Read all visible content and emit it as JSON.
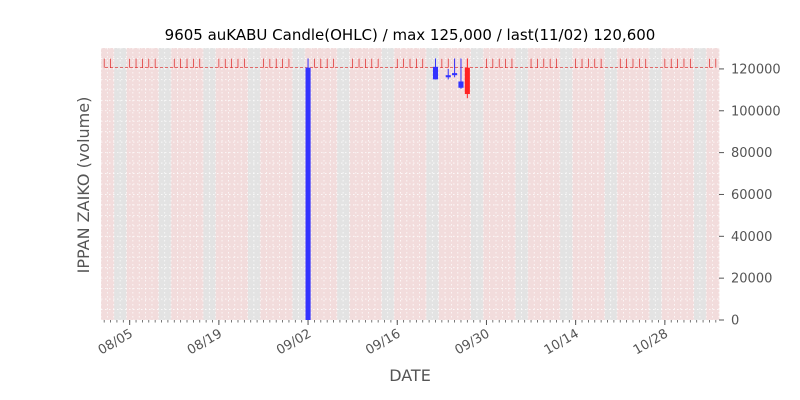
{
  "chart_data": {
    "type": "candlestick",
    "title": "9605 auKABU Candle(OHLC) / max 125,000 / last(11/02) 120,600",
    "xlabel": "DATE",
    "ylabel": "IPPAN ZAIKO (volume)",
    "ylim": [
      0,
      130000
    ],
    "xlim": [
      "2024-08-01",
      "2024-11-06"
    ],
    "y_axis_position": "right",
    "grid": true,
    "x_ticks": [
      "08/05",
      "08/19",
      "09/02",
      "09/16",
      "09/30",
      "10/14",
      "10/28"
    ],
    "x_tick_dates": [
      "2024-08-05",
      "2024-08-19",
      "2024-09-02",
      "2024-09-16",
      "2024-09-30",
      "2024-10-14",
      "2024-10-28"
    ],
    "y_ticks": [
      0,
      20000,
      40000,
      60000,
      80000,
      100000,
      120000
    ],
    "y_tick_labels": [
      "0",
      "20000",
      "40000",
      "60000",
      "80000",
      "100000",
      "120000"
    ],
    "max": 125000,
    "last_date": "11/02",
    "last_value": 120600,
    "reference_line": 120600,
    "candles": [
      {
        "date": "2024-09-02",
        "open": 0,
        "high": 125000,
        "low": 0,
        "close": 120600
      },
      {
        "date": "2024-09-22",
        "open": 115000,
        "high": 125000,
        "low": 115000,
        "close": 121000
      },
      {
        "date": "2024-09-24",
        "open": 116000,
        "high": 120000,
        "low": 115000,
        "close": 117000
      },
      {
        "date": "2024-09-25",
        "open": 117000,
        "high": 125000,
        "low": 116000,
        "close": 118000
      },
      {
        "date": "2024-09-26",
        "open": 111000,
        "high": 125000,
        "low": 110500,
        "close": 114000
      },
      {
        "date": "2024-09-27",
        "open": 120600,
        "high": 125000,
        "low": 106000,
        "close": 108000
      }
    ],
    "background_colors": {
      "weekday": "#f2dcdc",
      "weekend": "#e3e3e3",
      "grid": "#ffffff",
      "up": "#3333ff",
      "down": "#ff2222",
      "reference": "#dd2222"
    }
  }
}
